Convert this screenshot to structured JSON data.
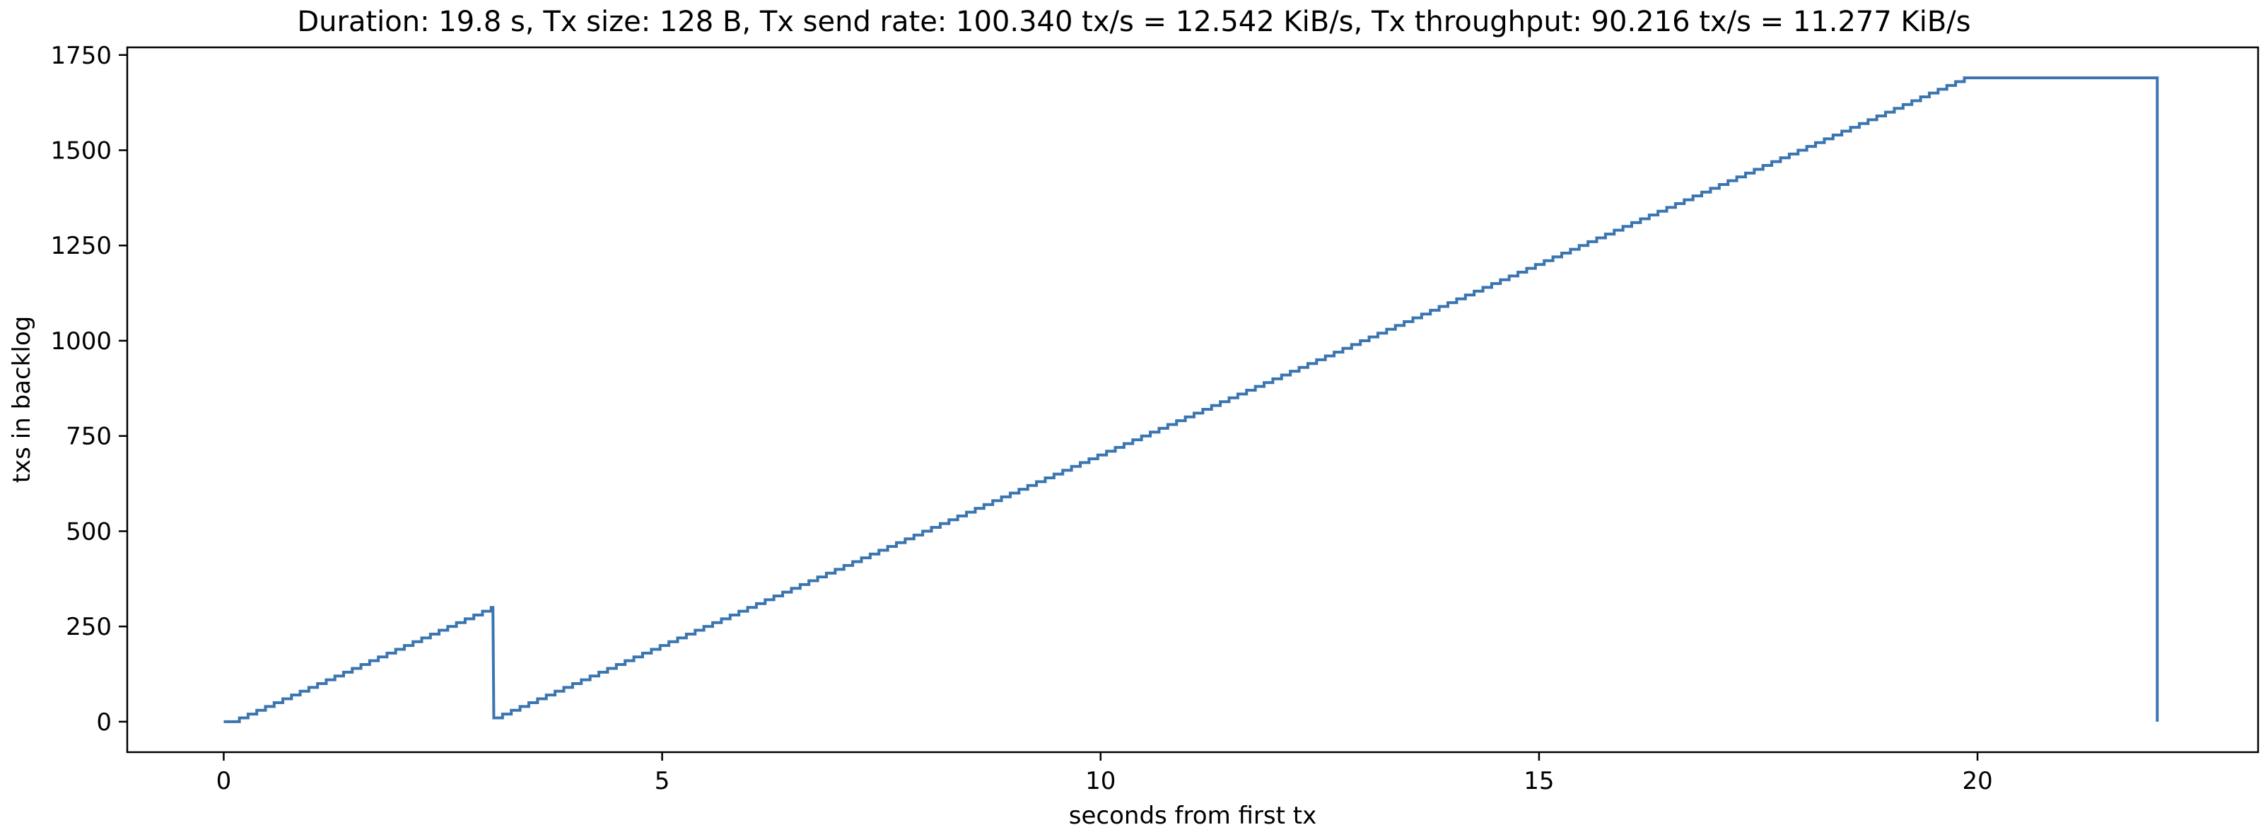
{
  "chart_data": {
    "type": "line",
    "title": "Duration: 19.8 s, Tx size: 128 B, Tx send rate: 100.340 tx/s = 12.542 KiB/s, Tx throughput: 90.216 tx/s = 11.277 KiB/s",
    "xlabel": "seconds from first tx",
    "ylabel": "txs in backlog",
    "xlim": [
      -1.1,
      23.2
    ],
    "ylim": [
      -80,
      1770
    ],
    "xticks": [
      0,
      5,
      10,
      15,
      20
    ],
    "xtick_labels": [
      "0",
      "5",
      "10",
      "15",
      "20"
    ],
    "yticks": [
      0,
      250,
      500,
      750,
      1000,
      1250,
      1500,
      1750
    ],
    "ytick_labels": [
      "0",
      "250",
      "500",
      "750",
      "1000",
      "1250",
      "1500",
      "1750"
    ],
    "grid": false,
    "step_style": "staircase",
    "series": [
      {
        "color": "#3a75b0",
        "x": [
          0.0,
          0.08,
          3.05,
          3.07,
          3.08,
          19.85,
          22.05,
          22.05
        ],
        "y": [
          0,
          0,
          300,
          300,
          10,
          1690,
          1690,
          0
        ]
      }
    ]
  }
}
